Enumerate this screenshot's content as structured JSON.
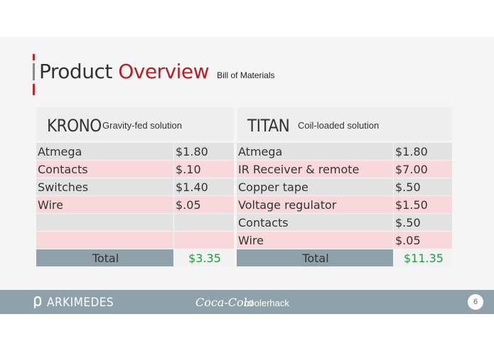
{
  "slide": {
    "title_main": "Product ",
    "title_accent": "Overview",
    "subtitle": "Bill of Materials",
    "page_number": "6",
    "colors": {
      "accent": "#b81e24",
      "footer": "#8fa1ab",
      "row_gray": "#e2e2e2",
      "row_pink": "#f9d8dc",
      "total_value": "#1b9e3e"
    }
  },
  "krono": {
    "name": "KRONO",
    "description": "Gravity-fed solution",
    "rows": [
      {
        "item": "Atmega",
        "price": "$1.80"
      },
      {
        "item": "Contacts",
        "price": "$.10"
      },
      {
        "item": "Switches",
        "price": "$1.40"
      },
      {
        "item": "Wire",
        "price": "$.05"
      },
      {
        "item": "",
        "price": ""
      },
      {
        "item": "",
        "price": ""
      }
    ],
    "total_label": "Total",
    "total_value": "$3.35"
  },
  "titan": {
    "name": "TITAN",
    "description": "Coil-loaded solution",
    "rows": [
      {
        "item": "Atmega",
        "price": "$1.80"
      },
      {
        "item": "IR Receiver & remote",
        "price": "$7.00"
      },
      {
        "item": "Copper tape",
        "price": "$.50"
      },
      {
        "item": "Voltage regulator",
        "price": "$1.50"
      },
      {
        "item": "Contacts",
        "price": "$.50"
      },
      {
        "item": "Wire",
        "price": "$.05"
      }
    ],
    "total_label": "Total",
    "total_value": "$11.35"
  },
  "footer": {
    "brand": "ARKIMEDES",
    "partner_logo_text": "Coca-Cola",
    "event": "coolerhack",
    "icons": {
      "brand_logo": "arkimedes-logo-icon",
      "partner_logo": "coca-cola-logo"
    }
  }
}
